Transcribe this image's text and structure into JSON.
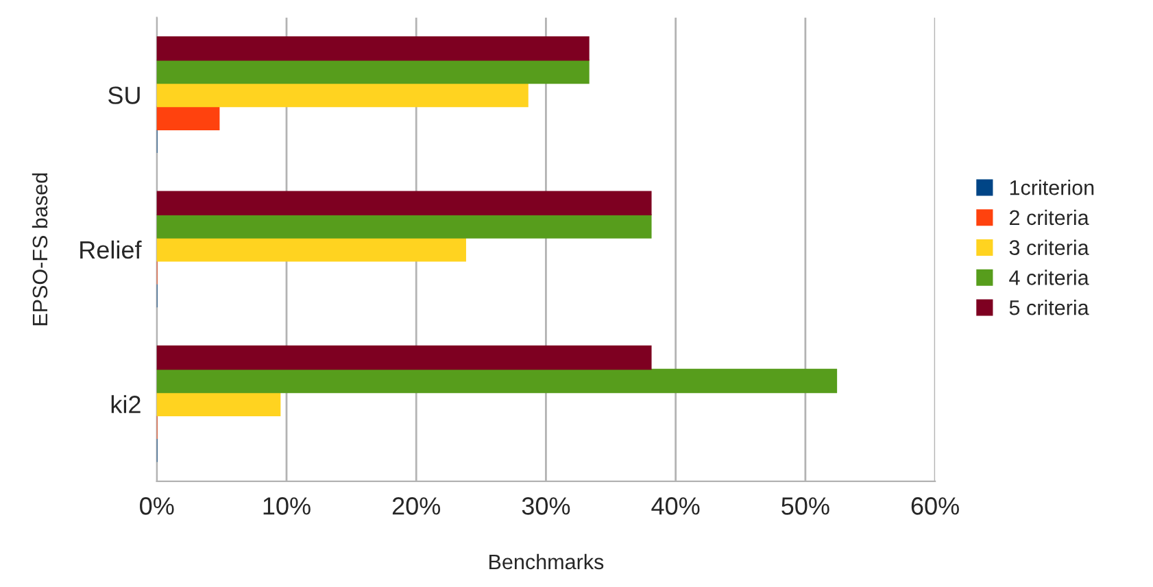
{
  "chart_data": {
    "type": "bar",
    "orientation": "horizontal",
    "xlabel": "Benchmarks",
    "ylabel": "EPSO-FS based",
    "categories": [
      "SU",
      "Relief",
      "ki2"
    ],
    "series": [
      {
        "name": "1criterion",
        "color": "#004586",
        "values": [
          0,
          0,
          0
        ]
      },
      {
        "name": "2 criteria",
        "color": "#ff420e",
        "values": [
          4.8,
          0,
          0
        ]
      },
      {
        "name": "3 criteria",
        "color": "#ffd320",
        "values": [
          28.6,
          23.8,
          9.5
        ]
      },
      {
        "name": "4 criteria",
        "color": "#579d1c",
        "values": [
          33.3,
          38.1,
          52.4
        ]
      },
      {
        "name": "5 criteria",
        "color": "#7e0021",
        "values": [
          33.3,
          38.1,
          38.1
        ]
      }
    ],
    "xlim": [
      0,
      60
    ],
    "xticks": [
      {
        "value": 0,
        "label": "0%"
      },
      {
        "value": 10,
        "label": "10%"
      },
      {
        "value": 20,
        "label": "20%"
      },
      {
        "value": 30,
        "label": "30%"
      },
      {
        "value": 40,
        "label": "40%"
      },
      {
        "value": 50,
        "label": "50%"
      },
      {
        "value": 60,
        "label": "60%"
      }
    ],
    "grid": "x",
    "legend": "right"
  }
}
